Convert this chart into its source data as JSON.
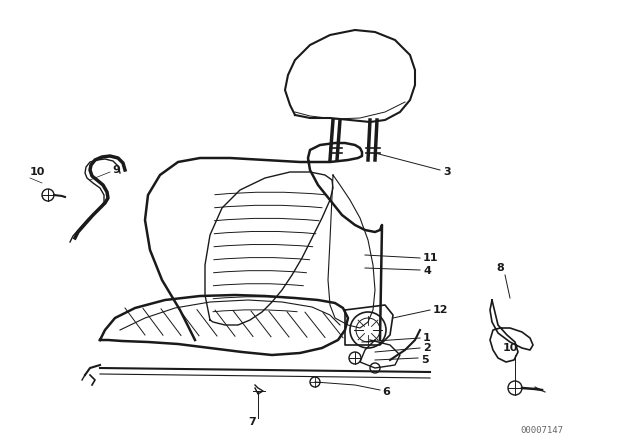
{
  "bg_color": "#ffffff",
  "fig_width": 6.4,
  "fig_height": 4.48,
  "dpi": 100,
  "watermark": "00007147",
  "line_color": "#1a1a1a",
  "label_fontsize": 8.0
}
